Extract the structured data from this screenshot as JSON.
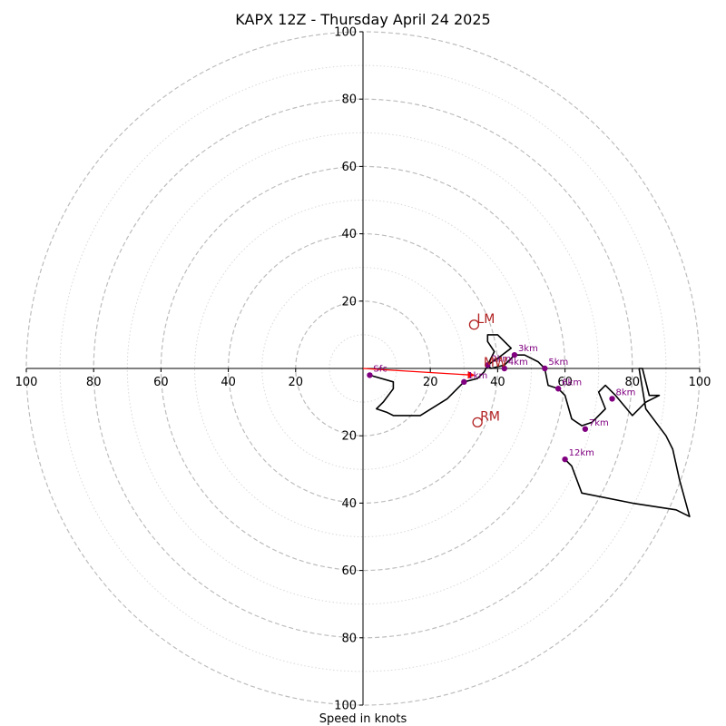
{
  "chart_data": {
    "type": "hodograph",
    "title": "KAPX 12Z - Thursday April 24 2025",
    "xlabel": "Speed in knots",
    "ylabel": "",
    "xlim": [
      -100,
      100
    ],
    "ylim": [
      -100,
      100
    ],
    "ring_labels": [
      "20",
      "40",
      "60",
      "80",
      "100"
    ],
    "ring_values": [
      20,
      40,
      60,
      80,
      100
    ],
    "minor_ring_values": [
      10,
      30,
      50,
      70,
      90
    ],
    "x_tick_labels": [
      {
        "value": -100,
        "label": "100"
      },
      {
        "value": -80,
        "label": "80"
      },
      {
        "value": -60,
        "label": "60"
      },
      {
        "value": -40,
        "label": "40"
      },
      {
        "value": -20,
        "label": "20"
      },
      {
        "value": 20,
        "label": "20"
      },
      {
        "value": 40,
        "label": "40"
      },
      {
        "value": 60,
        "label": "60"
      },
      {
        "value": 80,
        "label": "80"
      },
      {
        "value": 100,
        "label": "100"
      }
    ],
    "y_tick_labels": [
      {
        "value": 100,
        "label": "100"
      },
      {
        "value": 80,
        "label": "80"
      },
      {
        "value": 60,
        "label": "60"
      },
      {
        "value": 40,
        "label": "40"
      },
      {
        "value": 20,
        "label": "20"
      },
      {
        "value": -20,
        "label": "20"
      },
      {
        "value": -40,
        "label": "40"
      },
      {
        "value": -60,
        "label": "60"
      },
      {
        "value": -80,
        "label": "80"
      },
      {
        "value": -100,
        "label": "100"
      }
    ],
    "wind_trace": [
      [
        2,
        -2
      ],
      [
        9,
        -4
      ],
      [
        9,
        -6
      ],
      [
        6,
        -10
      ],
      [
        4,
        -12
      ],
      [
        7,
        -13
      ],
      [
        9,
        -14
      ],
      [
        17,
        -14
      ],
      [
        25,
        -9
      ],
      [
        30,
        -4
      ],
      [
        34,
        -3
      ],
      [
        36,
        -1
      ],
      [
        37,
        1
      ],
      [
        38,
        3
      ],
      [
        39,
        5
      ],
      [
        37,
        8
      ],
      [
        37,
        10
      ],
      [
        40,
        10
      ],
      [
        42,
        8
      ],
      [
        44,
        6
      ],
      [
        40,
        3
      ],
      [
        37,
        1
      ],
      [
        38,
        0
      ],
      [
        42,
        1
      ],
      [
        45,
        4
      ],
      [
        48,
        4
      ],
      [
        52,
        2
      ],
      [
        54,
        0
      ],
      [
        55,
        -5
      ],
      [
        58,
        -6
      ],
      [
        60,
        -8
      ],
      [
        62,
        -15
      ],
      [
        65,
        -17
      ],
      [
        68,
        -16
      ],
      [
        72,
        -12
      ],
      [
        70,
        -7
      ],
      [
        72,
        -5
      ],
      [
        75,
        -8
      ],
      [
        80,
        -14
      ],
      [
        84,
        -10
      ],
      [
        88,
        -8
      ],
      [
        85,
        -8
      ],
      [
        83,
        0
      ],
      [
        82,
        0
      ],
      [
        84,
        -12
      ],
      [
        90,
        -20
      ],
      [
        92,
        -24
      ],
      [
        94,
        -33
      ],
      [
        97,
        -44
      ],
      [
        93,
        -42
      ],
      [
        80,
        -40
      ],
      [
        65,
        -37
      ],
      [
        62,
        -29
      ],
      [
        60,
        -27
      ]
    ],
    "height_markers": [
      {
        "label": "Sfc",
        "u": 2,
        "v": -2
      },
      {
        "label": "1km",
        "u": 30,
        "v": -4
      },
      {
        "label": "2km",
        "u": 37,
        "v": 1
      },
      {
        "label": "3km",
        "u": 45,
        "v": 4
      },
      {
        "label": "4km",
        "u": 42,
        "v": 0
      },
      {
        "label": "5km",
        "u": 54,
        "v": 0
      },
      {
        "label": "6km",
        "u": 58,
        "v": -6
      },
      {
        "label": "7km",
        "u": 66,
        "v": -18
      },
      {
        "label": "8km",
        "u": 74,
        "v": -9
      },
      {
        "label": "12km",
        "u": 60,
        "v": -27
      }
    ],
    "storm_motion": [
      {
        "label": "LM",
        "u": 33,
        "v": 13
      },
      {
        "label": "RM",
        "u": 34,
        "v": -16
      },
      {
        "label": "MW",
        "u": 35,
        "v": 0
      }
    ],
    "shear_vector": {
      "from": [
        0,
        0
      ],
      "to": [
        33,
        -2
      ]
    },
    "colors": {
      "trace": "#000000",
      "marker": "#800080",
      "storm_motion": "#b22222",
      "shear_vector": "#ff0000",
      "ring": "#bdbdbd",
      "minor_ring": "#d9d9d9"
    }
  }
}
